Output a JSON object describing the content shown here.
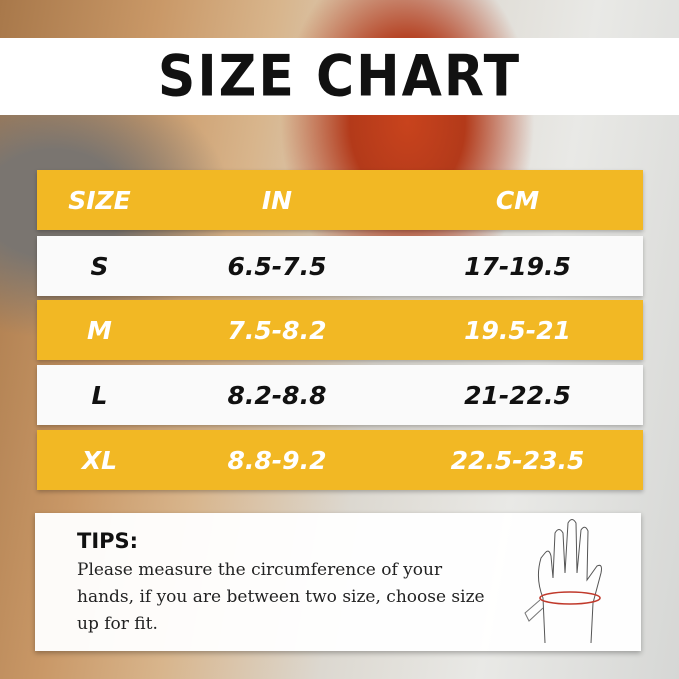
{
  "title": "SIZE CHART",
  "table": {
    "headers": [
      "SIZE",
      "IN",
      "CM"
    ],
    "rows": [
      {
        "size": "S",
        "in": "6.5-7.5",
        "cm": "17-19.5"
      },
      {
        "size": "M",
        "in": "7.5-8.2",
        "cm": "19.5-21"
      },
      {
        "size": "L",
        "in": "8.2-8.8",
        "cm": "21-22.5"
      },
      {
        "size": "XL",
        "in": "8.8-9.2",
        "cm": "22.5-23.5"
      }
    ]
  },
  "tips": {
    "heading": "TIPS:",
    "text": "Please measure the circumference of your hands, if you are between two size, choose size up for fit."
  },
  "colors": {
    "accent": "#f2b824",
    "row_light": "#fafafa",
    "measure_line": "#c0392b"
  }
}
